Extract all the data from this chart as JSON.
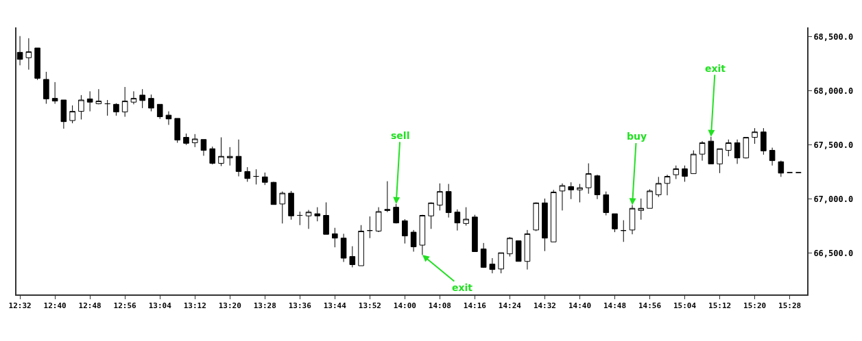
{
  "chart_data": {
    "type": "candlestick",
    "color": "#000000",
    "x": [
      12.5333,
      12.5667,
      12.6,
      12.6333,
      12.6667,
      12.7,
      12.7333,
      12.7667,
      12.8,
      12.8333,
      12.8667,
      12.9,
      12.9333,
      12.9667,
      13,
      13.0333,
      13.0667,
      13.1,
      13.1333,
      13.1667,
      13.2,
      13.2333,
      13.2667,
      13.3,
      13.3333,
      13.3667,
      13.4,
      13.4333,
      13.4667,
      13.5,
      13.5333,
      13.5667,
      13.6,
      13.6333,
      13.6667,
      13.7,
      13.7333,
      13.7667,
      13.8,
      13.8333,
      13.8667,
      13.9,
      13.9333,
      13.9667,
      14,
      14.0333,
      14.0667,
      14.1,
      14.1333,
      14.1667,
      14.2,
      14.2333,
      14.2667,
      14.3,
      14.3333,
      14.3667,
      14.4,
      14.4333,
      14.4667,
      14.5,
      14.5333,
      14.5667,
      14.6,
      14.6333,
      14.6667,
      14.7,
      14.7333,
      14.7667,
      14.8,
      14.8333,
      14.8667,
      14.9,
      14.9333,
      14.9667,
      15,
      15.0333,
      15.0667,
      15.1,
      15.1333,
      15.1667,
      15.2,
      15.2333,
      15.2667,
      15.3,
      15.3333,
      15.3667,
      15.4,
      15.4333,
      15.4667,
      15.5
    ],
    "ohlc": [
      [
        68355,
        68505,
        68235,
        68290
      ],
      [
        68305,
        68485,
        68195,
        68360
      ],
      [
        68395,
        68395,
        68100,
        68115
      ],
      [
        68105,
        68175,
        67880,
        67925
      ],
      [
        67930,
        68080,
        67880,
        67905
      ],
      [
        67915,
        67915,
        67650,
        67715
      ],
      [
        67725,
        67865,
        67700,
        67810
      ],
      [
        67810,
        67960,
        67735,
        67915
      ],
      [
        67925,
        67995,
        67810,
        67895
      ],
      [
        67880,
        68015,
        67875,
        67905
      ],
      [
        67880,
        67915,
        67770,
        67880
      ],
      [
        67875,
        67885,
        67770,
        67805
      ],
      [
        67805,
        68035,
        67760,
        67905
      ],
      [
        67895,
        67995,
        67875,
        67930
      ],
      [
        67960,
        68015,
        67840,
        67910
      ],
      [
        67930,
        67965,
        67810,
        67840
      ],
      [
        67875,
        67875,
        67740,
        67760
      ],
      [
        67775,
        67810,
        67685,
        67740
      ],
      [
        67745,
        67745,
        67520,
        67545
      ],
      [
        67570,
        67605,
        67500,
        67515
      ],
      [
        67520,
        67600,
        67480,
        67555
      ],
      [
        67550,
        67550,
        67400,
        67450
      ],
      [
        67465,
        67485,
        67320,
        67330
      ],
      [
        67330,
        67570,
        67305,
        67395
      ],
      [
        67380,
        67480,
        67310,
        67395
      ],
      [
        67395,
        67550,
        67210,
        67255
      ],
      [
        67255,
        67295,
        67160,
        67190
      ],
      [
        67210,
        67275,
        67135,
        67210
      ],
      [
        67205,
        67245,
        67130,
        67155
      ],
      [
        67155,
        67160,
        66950,
        66950
      ],
      [
        66955,
        67070,
        66775,
        67055
      ],
      [
        67055,
        67075,
        66810,
        66845
      ],
      [
        66850,
        66885,
        66760,
        66850
      ],
      [
        66845,
        66900,
        66725,
        66880
      ],
      [
        66865,
        66925,
        66795,
        66845
      ],
      [
        66850,
        66970,
        66675,
        66675
      ],
      [
        66680,
        66735,
        66555,
        66640
      ],
      [
        66640,
        66680,
        66420,
        66455
      ],
      [
        66470,
        66565,
        66370,
        66395
      ],
      [
        66385,
        66760,
        66385,
        66705
      ],
      [
        66710,
        66840,
        66640,
        66710
      ],
      [
        66705,
        66925,
        66695,
        66885
      ],
      [
        66905,
        67165,
        66880,
        66895
      ],
      [
        66925,
        66955,
        66775,
        66780
      ],
      [
        66800,
        66815,
        66590,
        66660
      ],
      [
        66695,
        66715,
        66515,
        66560
      ],
      [
        66575,
        66855,
        66485,
        66850
      ],
      [
        66845,
        66970,
        66725,
        66965
      ],
      [
        66945,
        67145,
        66895,
        67070
      ],
      [
        67070,
        67140,
        66830,
        66875
      ],
      [
        66880,
        66905,
        66710,
        66780
      ],
      [
        66775,
        66925,
        66755,
        66815
      ],
      [
        66835,
        66855,
        66515,
        66515
      ],
      [
        66540,
        66595,
        66365,
        66370
      ],
      [
        66400,
        66455,
        66315,
        66350
      ],
      [
        66355,
        66505,
        66315,
        66505
      ],
      [
        66495,
        66650,
        66470,
        66640
      ],
      [
        66615,
        66615,
        66425,
        66425
      ],
      [
        66425,
        66715,
        66350,
        66680
      ],
      [
        66715,
        66970,
        66705,
        66965
      ],
      [
        66965,
        67005,
        66520,
        66640
      ],
      [
        66605,
        67085,
        66605,
        67065
      ],
      [
        67075,
        67145,
        66895,
        67125
      ],
      [
        67115,
        67155,
        67000,
        67085
      ],
      [
        67085,
        67140,
        66970,
        67105
      ],
      [
        67105,
        67330,
        67050,
        67235
      ],
      [
        67215,
        67225,
        67000,
        67040
      ],
      [
        67040,
        67070,
        66850,
        66875
      ],
      [
        66865,
        66865,
        66695,
        66725
      ],
      [
        66710,
        66805,
        66605,
        66710
      ],
      [
        66715,
        66945,
        66675,
        66915
      ],
      [
        66895,
        67005,
        66810,
        66915
      ],
      [
        66915,
        67090,
        66915,
        67075
      ],
      [
        67040,
        67205,
        67020,
        67145
      ],
      [
        67145,
        67225,
        67035,
        67210
      ],
      [
        67225,
        67310,
        67185,
        67280
      ],
      [
        67280,
        67310,
        67160,
        67210
      ],
      [
        67235,
        67450,
        67235,
        67415
      ],
      [
        67415,
        67535,
        67355,
        67520
      ],
      [
        67535,
        67575,
        67325,
        67325
      ],
      [
        67325,
        67465,
        67240,
        67465
      ],
      [
        67450,
        67550,
        67395,
        67520
      ],
      [
        67520,
        67550,
        67325,
        67380
      ],
      [
        67380,
        67570,
        67375,
        67570
      ],
      [
        67570,
        67655,
        67510,
        67620
      ],
      [
        67620,
        67655,
        67410,
        67445
      ],
      [
        67450,
        67475,
        67310,
        67355
      ],
      [
        67345,
        67355,
        67205,
        67240
      ],
      [
        67245,
        67245,
        67245,
        67245
      ],
      [
        67245,
        67245,
        67245,
        67245
      ]
    ],
    "xlim": [
      12.52,
      15.533
    ],
    "xticks": [
      {
        "value": 12.5333,
        "label": "12:32"
      },
      {
        "value": 12.6667,
        "label": "12:40"
      },
      {
        "value": 12.8,
        "label": "12:48"
      },
      {
        "value": 12.9333,
        "label": "12:56"
      },
      {
        "value": 13.0667,
        "label": "13:04"
      },
      {
        "value": 13.2,
        "label": "13:12"
      },
      {
        "value": 13.3333,
        "label": "13:20"
      },
      {
        "value": 13.4667,
        "label": "13:28"
      },
      {
        "value": 13.6,
        "label": "13:36"
      },
      {
        "value": 13.7333,
        "label": "13:44"
      },
      {
        "value": 13.8667,
        "label": "13:52"
      },
      {
        "value": 14,
        "label": "14:00"
      },
      {
        "value": 14.1333,
        "label": "14:08"
      },
      {
        "value": 14.2667,
        "label": "14:16"
      },
      {
        "value": 14.4,
        "label": "14:24"
      },
      {
        "value": 14.5333,
        "label": "14:32"
      },
      {
        "value": 14.6667,
        "label": "14:40"
      },
      {
        "value": 14.8,
        "label": "14:48"
      },
      {
        "value": 14.9333,
        "label": "14:56"
      },
      {
        "value": 15.0667,
        "label": "15:04"
      },
      {
        "value": 15.2,
        "label": "15:12"
      },
      {
        "value": 15.3333,
        "label": "15:20"
      },
      {
        "value": 15.4667,
        "label": "15:28"
      }
    ],
    "ylim": [
      66120,
      68585
    ],
    "yticks": [
      {
        "value": 66500,
        "label": "66,500.0"
      },
      {
        "value": 67000,
        "label": "67,000.0"
      },
      {
        "value": 67500,
        "label": "67,500.0"
      },
      {
        "value": 68000,
        "label": "68,000.0"
      },
      {
        "value": 68500,
        "label": "68,500.0"
      }
    ],
    "annotations": [
      {
        "text": "sell",
        "x": 13.9667,
        "y": 66955
      },
      {
        "text": "exit",
        "x": 14.0667,
        "y": 66485
      },
      {
        "text": "buy",
        "x": 14.8667,
        "y": 66945
      },
      {
        "text": "exit",
        "x": 15.1667,
        "y": 67575
      }
    ]
  }
}
